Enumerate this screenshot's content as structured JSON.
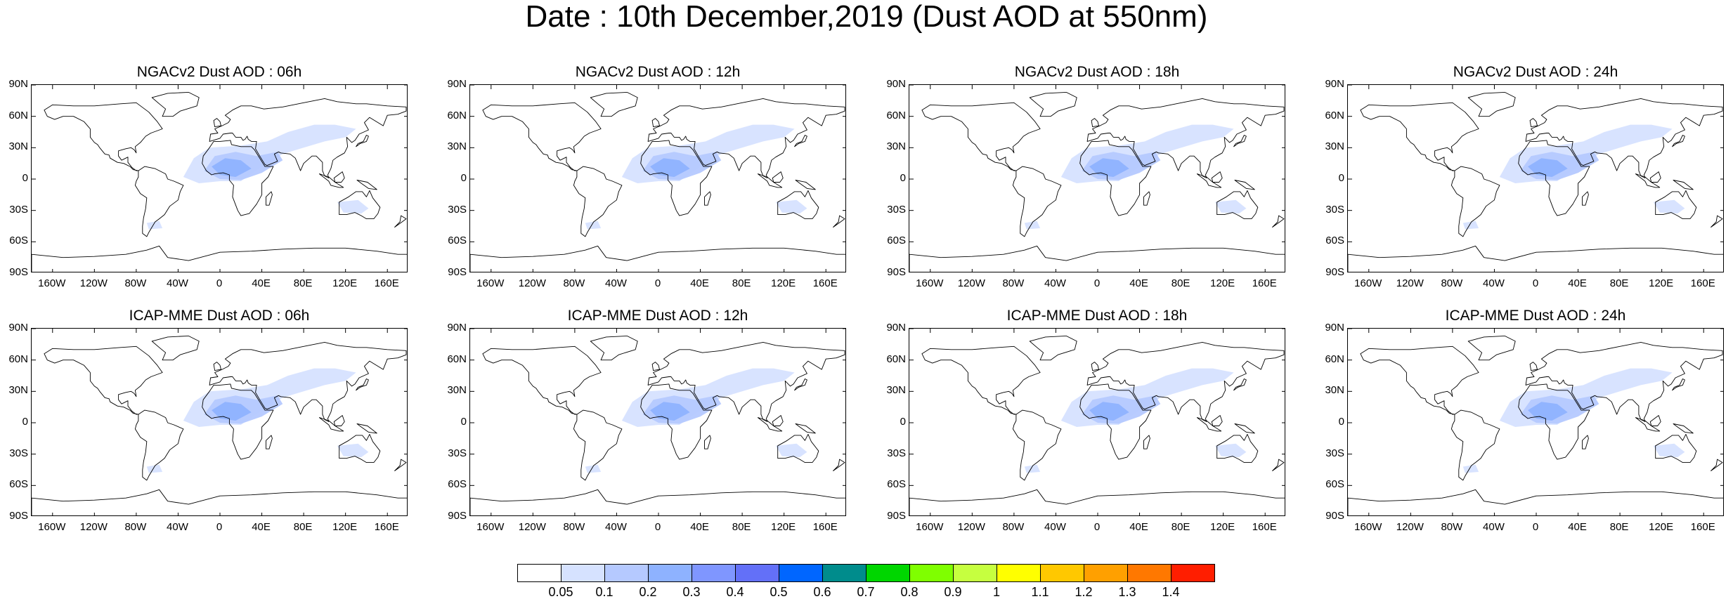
{
  "title": "Date : 10th December,2019 (Dust AOD at 550nm)",
  "axes": {
    "lat_labels": [
      "90N",
      "60N",
      "30N",
      "0",
      "30S",
      "60S",
      "90S"
    ],
    "lon_labels": [
      "160W",
      "120W",
      "80W",
      "40W",
      "0",
      "40E",
      "80E",
      "120E",
      "160E"
    ]
  },
  "chart_data": [
    {
      "type": "heatmap",
      "title": "NGACv2 Dust AOD : 06h",
      "model": "NGACv2",
      "forecast_hour": "06h",
      "xlim": [
        -180,
        180
      ],
      "ylim": [
        -90,
        90
      ]
    },
    {
      "type": "heatmap",
      "title": "NGACv2 Dust AOD : 12h",
      "model": "NGACv2",
      "forecast_hour": "12h",
      "xlim": [
        -180,
        180
      ],
      "ylim": [
        -90,
        90
      ]
    },
    {
      "type": "heatmap",
      "title": "NGACv2 Dust AOD : 18h",
      "model": "NGACv2",
      "forecast_hour": "18h",
      "xlim": [
        -180,
        180
      ],
      "ylim": [
        -90,
        90
      ]
    },
    {
      "type": "heatmap",
      "title": "NGACv2 Dust AOD : 24h",
      "model": "NGACv2",
      "forecast_hour": "24h",
      "xlim": [
        -180,
        180
      ],
      "ylim": [
        -90,
        90
      ]
    },
    {
      "type": "heatmap",
      "title": "ICAP-MME Dust AOD : 06h",
      "model": "ICAP-MME",
      "forecast_hour": "06h",
      "xlim": [
        -180,
        180
      ],
      "ylim": [
        -90,
        90
      ]
    },
    {
      "type": "heatmap",
      "title": "ICAP-MME Dust AOD : 12h",
      "model": "ICAP-MME",
      "forecast_hour": "12h",
      "xlim": [
        -180,
        180
      ],
      "ylim": [
        -90,
        90
      ]
    },
    {
      "type": "heatmap",
      "title": "ICAP-MME Dust AOD : 18h",
      "model": "ICAP-MME",
      "forecast_hour": "18h",
      "xlim": [
        -180,
        180
      ],
      "ylim": [
        -90,
        90
      ]
    },
    {
      "type": "heatmap",
      "title": "ICAP-MME Dust AOD : 24h",
      "model": "ICAP-MME",
      "forecast_hour": "24h",
      "xlim": [
        -180,
        180
      ],
      "ylim": [
        -90,
        90
      ]
    }
  ],
  "colorbar": {
    "labels": [
      "0.05",
      "0.1",
      "0.2",
      "0.3",
      "0.4",
      "0.5",
      "0.6",
      "0.7",
      "0.8",
      "0.9",
      "1",
      "1.1",
      "1.2",
      "1.3",
      "1.4"
    ],
    "colors": [
      "#ffffff",
      "#d6e2ff",
      "#b5c9ff",
      "#8eb2ff",
      "#7f96ff",
      "#6370f8",
      "#0066ff",
      "#008c8c",
      "#00d600",
      "#7fff00",
      "#c6ff3f",
      "#ffff00",
      "#ffc800",
      "#ffa000",
      "#ff7800",
      "#ff1e00"
    ]
  }
}
